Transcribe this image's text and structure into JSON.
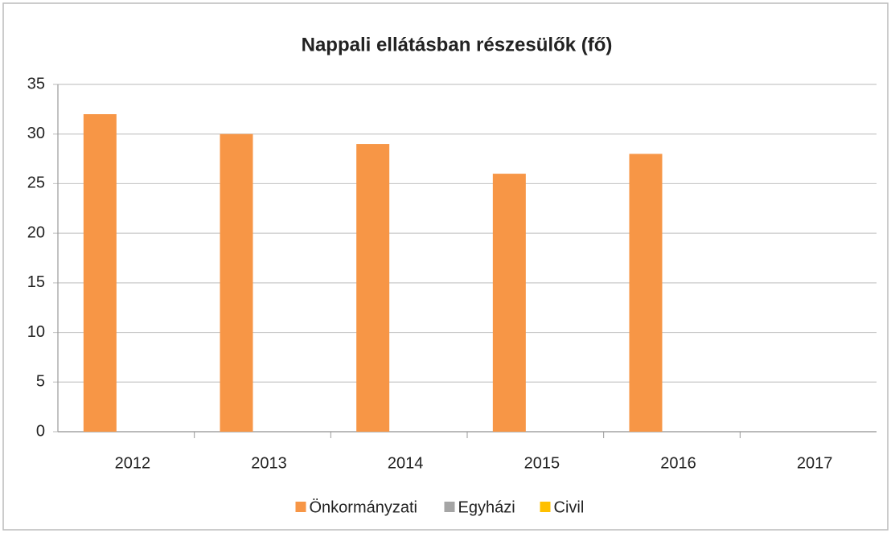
{
  "chart_data": {
    "type": "bar",
    "title": "Nappali ellátásban részesülők (fő)",
    "categories": [
      "2012",
      "2013",
      "2014",
      "2015",
      "2016",
      "2017"
    ],
    "series": [
      {
        "name": "Önkormányzati",
        "color": "#f79646",
        "values": [
          32,
          30,
          29,
          26,
          28,
          null
        ]
      },
      {
        "name": "Egyházi",
        "color": "#a5a5a5",
        "values": [
          0,
          0,
          0,
          0,
          0,
          null
        ]
      },
      {
        "name": "Civil",
        "color": "#ffc000",
        "values": [
          0,
          0,
          0,
          0,
          0,
          null
        ]
      }
    ],
    "ylim": [
      0,
      35
    ],
    "yticks": [
      0,
      5,
      10,
      15,
      20,
      25,
      30,
      35
    ],
    "grid": true,
    "legend": "bottom"
  }
}
